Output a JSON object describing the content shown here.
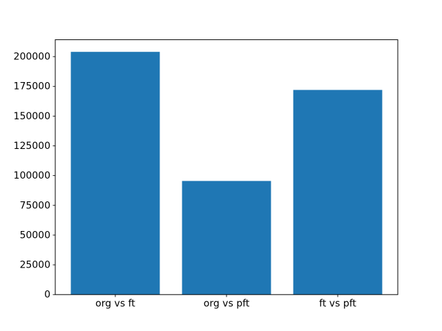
{
  "chart_data": {
    "type": "bar",
    "categories": [
      "org vs ft",
      "org vs pft",
      "ft vs pft"
    ],
    "values": [
      204000,
      95500,
      172000
    ],
    "title": "",
    "xlabel": "",
    "ylabel": "",
    "ylim": [
      0,
      214200
    ],
    "xlim": [
      -0.54,
      2.54
    ],
    "yticks": [
      0,
      25000,
      50000,
      75000,
      100000,
      125000,
      150000,
      175000,
      200000
    ],
    "ytick_labels": [
      "0",
      "25000",
      "50000",
      "75000",
      "100000",
      "125000",
      "150000",
      "175000",
      "200000"
    ],
    "bar_width_units": 0.8,
    "bar_color": "#1f77b4",
    "axis_color": "#000000",
    "background_color": "#ffffff",
    "grid": false,
    "legend": null
  }
}
